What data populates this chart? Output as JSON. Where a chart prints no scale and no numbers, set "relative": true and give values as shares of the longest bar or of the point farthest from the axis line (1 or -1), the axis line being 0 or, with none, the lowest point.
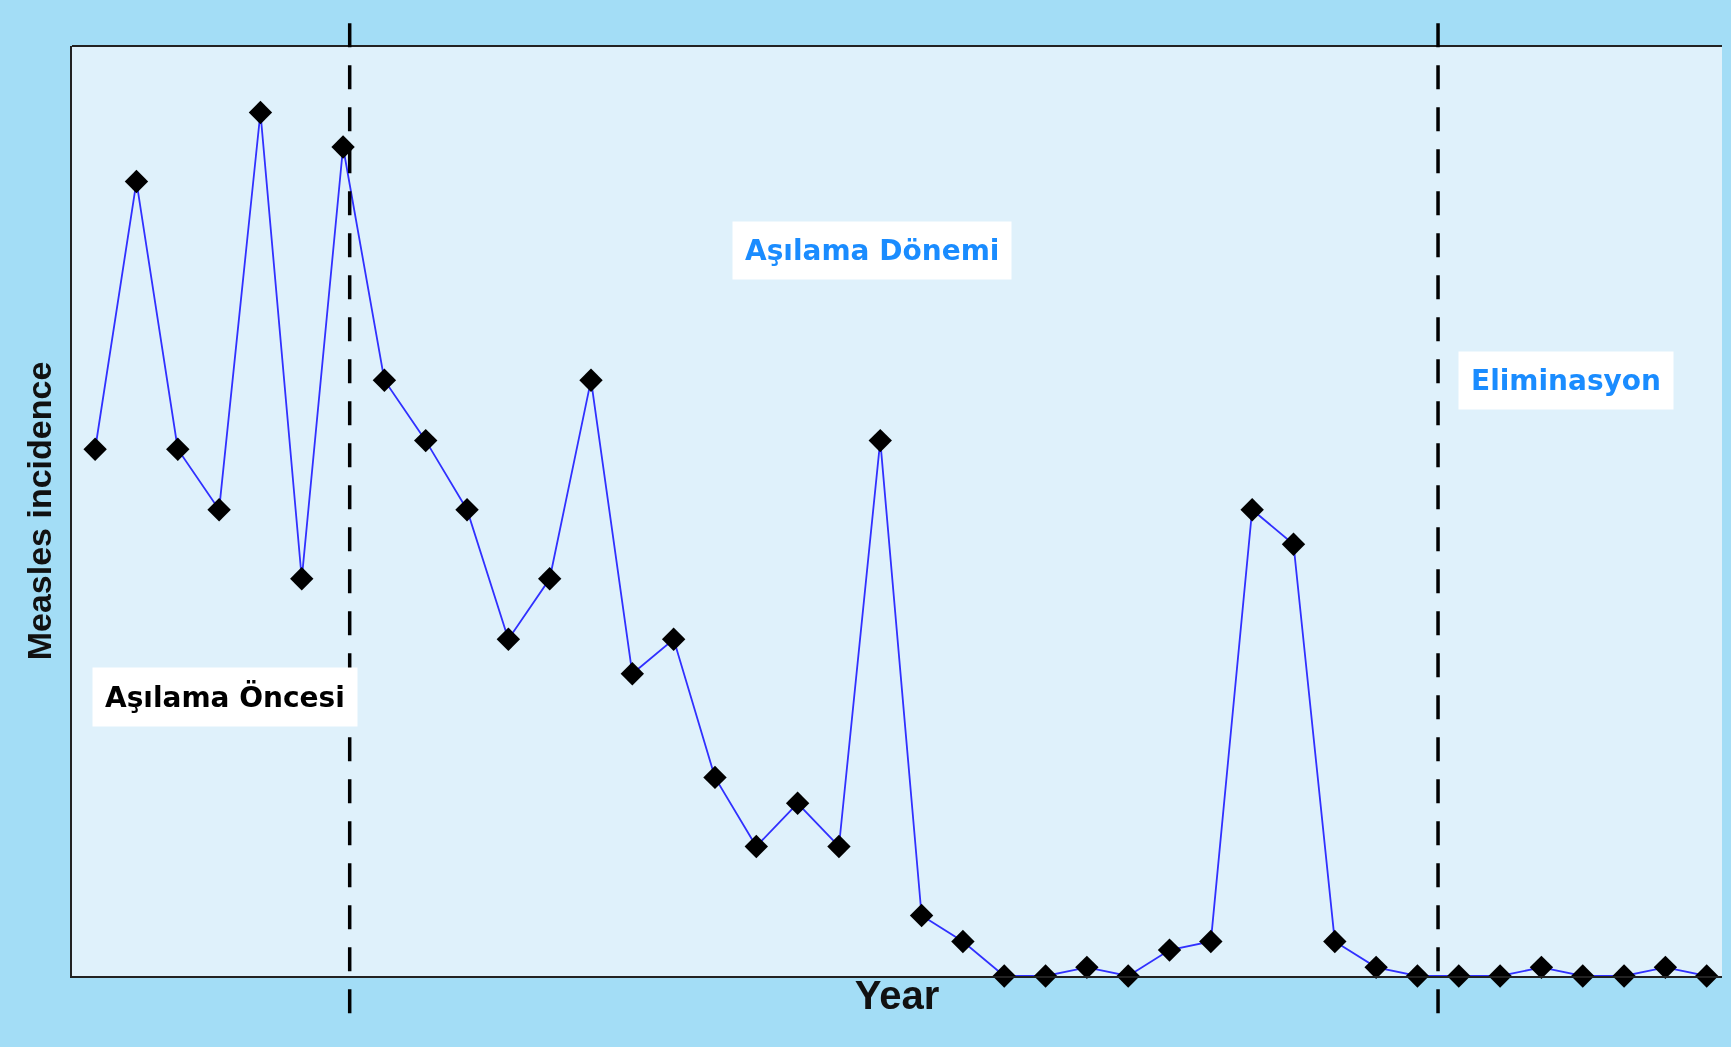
{
  "chart_data": {
    "type": "line",
    "xlabel": "Year",
    "ylabel": "Measles incidence",
    "relative": true,
    "marker": "diamond",
    "line_style": "solid",
    "categories": [
      null,
      null,
      null,
      null,
      null,
      null,
      null,
      null,
      null,
      null,
      null,
      null,
      null,
      null,
      null,
      null,
      null,
      null,
      null,
      null,
      null,
      null,
      null,
      null,
      null,
      null,
      null,
      null,
      null,
      null,
      null,
      null,
      null,
      null,
      null,
      null,
      null,
      null,
      null,
      null
    ],
    "series": [
      {
        "color": "#3030ff",
        "values": [
          0.61,
          0.92,
          0.61,
          0.54,
          1,
          0.46,
          0.96,
          0.69,
          0.62,
          0.54,
          0.39,
          0.46,
          0.69,
          0.35,
          0.39,
          0.23,
          0.15,
          0.2,
          0.15,
          0.62,
          0.07,
          0.04,
          0,
          0,
          0.01,
          0,
          0.03,
          0.04,
          0.54,
          0.5,
          0.04,
          0.01,
          0,
          0,
          0,
          0.01,
          0,
          0,
          0.01,
          0
        ]
      }
    ],
    "annotations": [
      "Aşılama Öncesi",
      "Aşılama Dönemi",
      "Eliminasyon"
    ]
  }
}
